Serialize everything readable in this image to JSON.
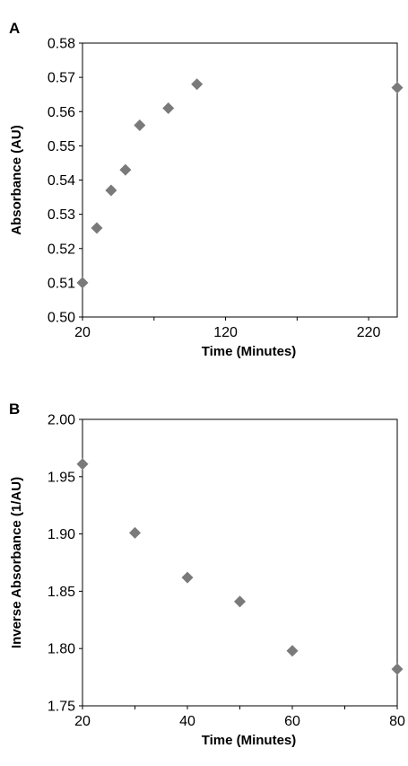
{
  "chart_data": [
    {
      "type": "scatter",
      "panel_label": "A",
      "title": "",
      "xlabel": "Time (Minutes)",
      "ylabel": "Absorbance (AU)",
      "xlim": [
        20,
        240
      ],
      "ylim": [
        0.5,
        0.58
      ],
      "x_ticks": [
        20,
        120,
        220
      ],
      "x_minor_ticks": [
        70,
        170
      ],
      "y_ticks": [
        "0.50",
        "0.51",
        "0.52",
        "0.53",
        "0.54",
        "0.55",
        "0.56",
        "0.57",
        "0.58"
      ],
      "grid": false,
      "marker": "diamond",
      "marker_color": "#7a7a7a",
      "points": [
        {
          "x": 20,
          "y": 0.51
        },
        {
          "x": 30,
          "y": 0.526
        },
        {
          "x": 40,
          "y": 0.537
        },
        {
          "x": 50,
          "y": 0.543
        },
        {
          "x": 60,
          "y": 0.556
        },
        {
          "x": 80,
          "y": 0.561
        },
        {
          "x": 100,
          "y": 0.568
        },
        {
          "x": 240,
          "y": 0.567
        }
      ]
    },
    {
      "type": "scatter",
      "panel_label": "B",
      "title": "",
      "xlabel": "Time (Minutes)",
      "ylabel": "Inverse Absorbance (1/AU)",
      "xlim": [
        20,
        80
      ],
      "ylim": [
        1.75,
        2.0
      ],
      "x_ticks": [
        20,
        40,
        60,
        80
      ],
      "x_minor_ticks": [
        30,
        50,
        70
      ],
      "y_ticks": [
        "1.75",
        "1.80",
        "1.85",
        "1.90",
        "1.95",
        "2.00"
      ],
      "grid": false,
      "marker": "diamond",
      "marker_color": "#7a7a7a",
      "points": [
        {
          "x": 20,
          "y": 1.961
        },
        {
          "x": 30,
          "y": 1.901
        },
        {
          "x": 40,
          "y": 1.862
        },
        {
          "x": 50,
          "y": 1.841
        },
        {
          "x": 60,
          "y": 1.798
        },
        {
          "x": 80,
          "y": 1.782
        }
      ]
    }
  ]
}
